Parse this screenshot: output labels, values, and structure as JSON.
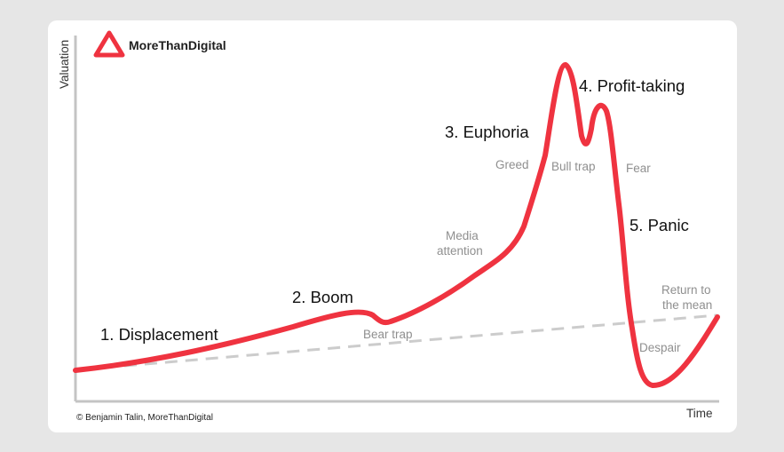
{
  "brand": {
    "name": "MoreThanDigital",
    "color": "#ef3340"
  },
  "axes": {
    "y_label": "Valuation",
    "x_label": "Time"
  },
  "stages": [
    {
      "id": "displacement",
      "label": "1. Displacement"
    },
    {
      "id": "boom",
      "label": "2. Boom"
    },
    {
      "id": "euphoria",
      "label": "3. Euphoria"
    },
    {
      "id": "profit",
      "label": "4. Profit-taking"
    },
    {
      "id": "panic",
      "label": "5. Panic"
    }
  ],
  "annotations": {
    "bear_trap": "Bear trap",
    "media_line1": "Media",
    "media_line2": "attention",
    "greed": "Greed",
    "bull_trap": "Bull trap",
    "fear": "Fear",
    "return_line1": "Return to",
    "return_line2": "the mean",
    "despair": "Despair"
  },
  "copyright": "© Benjamin Talin, MoreThanDigital",
  "colors": {
    "curve": "#ef3340",
    "trend": "#cccccc",
    "axis": "#c4c4c4"
  }
}
